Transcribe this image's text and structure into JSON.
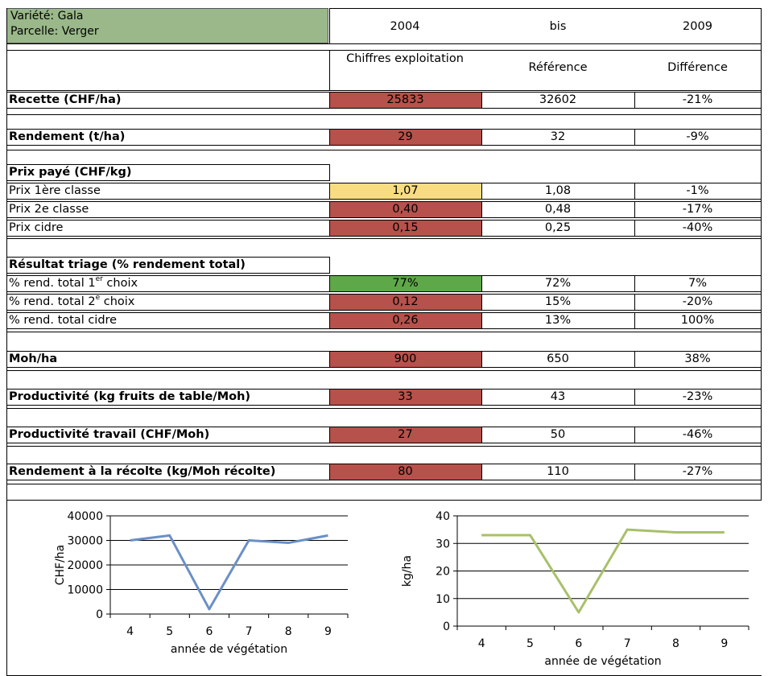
{
  "header": {
    "variety": "Variété: Gala",
    "plot": "Parcelle: Verger",
    "year_from": "2004",
    "range_word": "bis",
    "year_to": "2009"
  },
  "columns": {
    "farm": "Chiffres exploitation",
    "reference": "Référence",
    "difference": "Différence"
  },
  "colors": {
    "red": "#b6514b",
    "yellow": "#f8dc82",
    "green": "#5fa84a",
    "header": "#9ab88a"
  },
  "rows": [
    {
      "label": "Recette (CHF/ha)",
      "bold": true,
      "farm": "25833",
      "ref": "32602",
      "diff": "-21%",
      "color": "red"
    },
    {
      "label": "Rendement (t/ha)",
      "bold": true,
      "farm": "29",
      "ref": "32",
      "diff": "-9%",
      "color": "red"
    },
    {
      "label": "Prix payé (CHF/kg)",
      "bold": true,
      "section": true
    },
    {
      "label": "Prix 1ère classe",
      "farm": "1,07",
      "ref": "1,08",
      "diff": "-1%",
      "color": "yellow"
    },
    {
      "label": "Prix 2e classe",
      "farm": "0,40",
      "ref": "0,48",
      "diff": "-17%",
      "color": "red"
    },
    {
      "label": "Prix cidre",
      "farm": "0,15",
      "ref": "0,25",
      "diff": "-40%",
      "color": "red"
    },
    {
      "label": "Résultat triage (% rendement total)",
      "bold": true,
      "section": true
    },
    {
      "label": "% rend. total 1",
      "sup": "er",
      "label_suffix": " choix",
      "farm": "77%",
      "ref": "72%",
      "diff": "7%",
      "color": "green"
    },
    {
      "label": "% rend. total 2",
      "sup": "e",
      "label_suffix": " choix",
      "farm": "0,12",
      "ref": "15%",
      "diff": "-20%",
      "color": "red"
    },
    {
      "label": "% rend. total cidre",
      "farm": "0,26",
      "ref": "13%",
      "diff": "100%",
      "color": "red"
    },
    {
      "label": "Moh/ha",
      "bold": true,
      "farm": "900",
      "ref": "650",
      "diff": "38%",
      "color": "red"
    },
    {
      "label": "Productivité (kg fruits de table/Moh)",
      "bold": true,
      "farm": "33",
      "ref": "43",
      "diff": "-23%",
      "color": "red"
    },
    {
      "label": "Productivité travail (CHF/Moh)",
      "bold": true,
      "farm": "27",
      "ref": "50",
      "diff": "-46%",
      "color": "red"
    },
    {
      "label": "Rendement à la récolte (kg/Moh récolte)",
      "bold": true,
      "farm": "80",
      "ref": "110",
      "diff": "-27%",
      "color": "red"
    }
  ],
  "chart_data": [
    {
      "type": "line",
      "x": [
        4,
        5,
        6,
        7,
        8,
        9
      ],
      "values": [
        30000,
        32000,
        2000,
        30000,
        29000,
        32000
      ],
      "ylabel": "CHF/ha",
      "xlabel": "année de végétation",
      "ylim": [
        0,
        40000
      ],
      "yticks": [
        "0",
        "10000",
        "20000",
        "30000",
        "40000"
      ],
      "xticks": [
        "4",
        "5",
        "6",
        "7",
        "8",
        "9"
      ],
      "grid": true,
      "color": "#6b8fc7"
    },
    {
      "type": "line",
      "x": [
        4,
        5,
        6,
        7,
        8,
        9
      ],
      "values": [
        33,
        33,
        5,
        35,
        34,
        34
      ],
      "ylabel": "kg/ha",
      "xlabel": "année de végétation",
      "ylim": [
        0,
        40
      ],
      "yticks": [
        "0",
        "10",
        "20",
        "30",
        "40"
      ],
      "xticks": [
        "4",
        "5",
        "6",
        "7",
        "8",
        "9"
      ],
      "grid": true,
      "color": "#a8c069"
    }
  ]
}
